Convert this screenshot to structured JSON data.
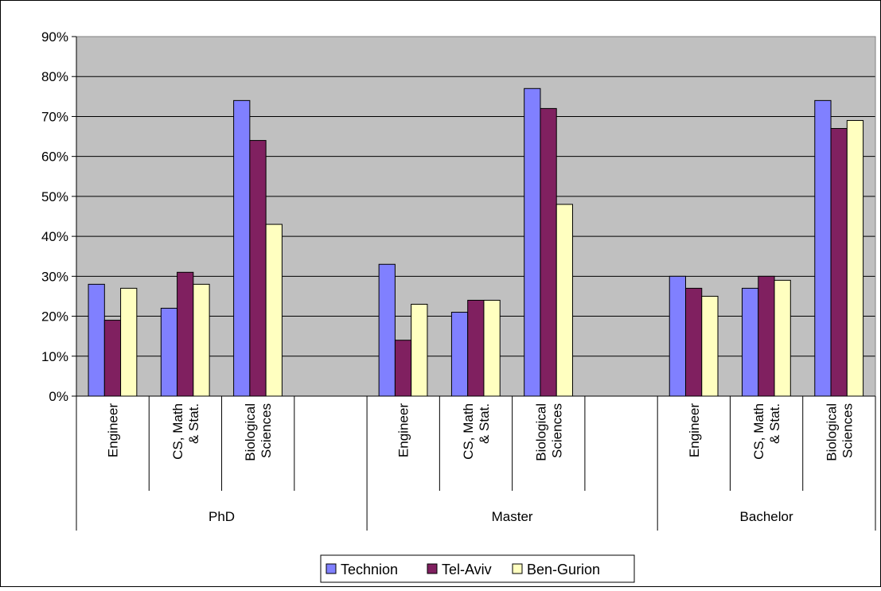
{
  "chart_data": {
    "type": "bar",
    "title": "",
    "xlabel": "",
    "ylabel": "",
    "ylim": [
      0,
      90
    ],
    "y_ticks": [
      0,
      10,
      20,
      30,
      40,
      50,
      60,
      70,
      80,
      90
    ],
    "y_tick_labels": [
      "0%",
      "10%",
      "20%",
      "30%",
      "40%",
      "50%",
      "60%",
      "70%",
      "80%",
      "90%"
    ],
    "grid": true,
    "legend_position": "bottom",
    "groups": [
      {
        "name": "PhD",
        "categories": [
          "Engineer",
          "CS, Math & Stat.",
          "Biological Sciences",
          ""
        ]
      },
      {
        "name": "Master",
        "categories": [
          "Engineer",
          "CS, Math & Stat.",
          "Biological Sciences",
          ""
        ]
      },
      {
        "name": "Bachelor",
        "categories": [
          "Engineer",
          "CS, Math & Stat.",
          "Biological Sciences"
        ]
      }
    ],
    "category_label_lines": {
      "Engineer": [
        "Engineer"
      ],
      "CS, Math & Stat.": [
        "CS, Math",
        "& Stat."
      ],
      "Biological Sciences": [
        "Biological",
        "Sciences"
      ]
    },
    "series": [
      {
        "name": "Technion",
        "color": "#8080ff",
        "values": [
          28,
          22,
          74,
          null,
          33,
          21,
          77,
          null,
          30,
          27,
          74
        ]
      },
      {
        "name": "Tel-Aviv",
        "color": "#802060",
        "values": [
          19,
          31,
          64,
          null,
          14,
          24,
          72,
          null,
          27,
          30,
          67
        ]
      },
      {
        "name": "Ben-Gurion",
        "color": "#ffffc0",
        "values": [
          27,
          28,
          43,
          null,
          23,
          24,
          48,
          null,
          25,
          29,
          69
        ]
      }
    ],
    "plot_background": "#c0c0c0"
  }
}
